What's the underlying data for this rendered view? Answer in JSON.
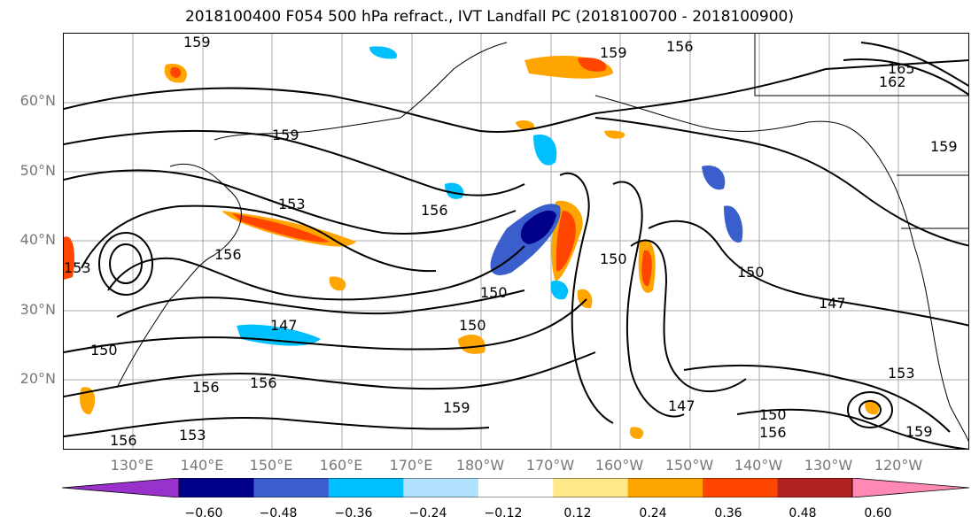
{
  "title": "2018100400 F054 500 hPa refract., IVT Landfall PC (2018100700 - 2018100900)",
  "lat_labels": [
    "60°N",
    "50°N",
    "40°N",
    "30°N",
    "20°N"
  ],
  "lon_labels": [
    "130°E",
    "140°E",
    "150°E",
    "160°E",
    "170°E",
    "180°W",
    "170°W",
    "160°W",
    "150°W",
    "140°W",
    "130°W",
    "120°W"
  ],
  "contour_labels": [
    "159",
    "159",
    "156",
    "165",
    "162",
    "159",
    "159",
    "153",
    "156",
    "156",
    "153",
    "150",
    "150",
    "150",
    "147",
    "147",
    "147",
    "150",
    "156",
    "156",
    "153",
    "156",
    "150",
    "156",
    "159",
    "153",
    "159",
    "150"
  ],
  "colorbar": {
    "ticks": [
      "−0.60",
      "−0.48",
      "−0.36",
      "−0.24",
      "−0.12",
      "0.12",
      "0.24",
      "0.36",
      "0.48",
      "0.60"
    ],
    "colors": [
      "#9932cc",
      "#00008b",
      "#3a5fcd",
      "#00bfff",
      "#b0e2ff",
      "#ffffff",
      "#ffe88a",
      "#ffa500",
      "#ff4500",
      "#b22222",
      "#ff88b4"
    ]
  }
}
